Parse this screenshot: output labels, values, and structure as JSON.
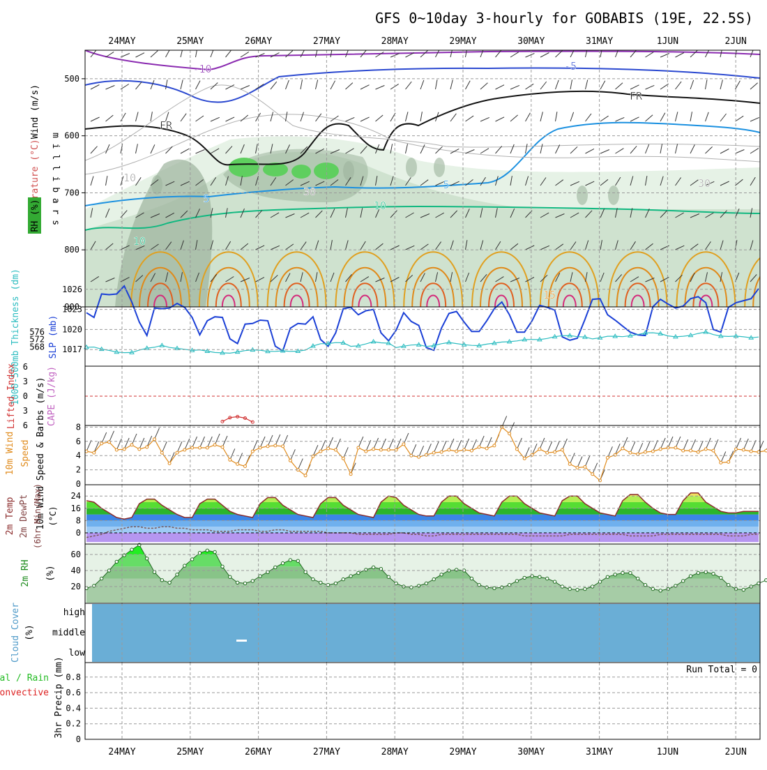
{
  "title": "GFS 0~10day 3-hourly for GOBABIS (19E, 22.5S)",
  "dates": [
    "24MAY",
    "25MAY",
    "26MAY",
    "27MAY",
    "28MAY",
    "29MAY",
    "30MAY",
    "31MAY",
    "1JUN",
    "2JUN"
  ],
  "colors": {
    "frame": "#000000",
    "grid": "#9a9a9a",
    "rh_light": "#e6f2e6",
    "rh_mid": "#c4dcc4",
    "rh_dark": "#9cb49c",
    "rh_green": "#5fcf5f",
    "wind_barb": "#333333",
    "slp": "#1a3fd6",
    "thickness": "#2bbcc0",
    "lifted": "#d03030",
    "cape": "#c060c0",
    "wind10": "#e08a1a",
    "temp_line": "#8b2a2a",
    "dewpt": "#7a5a5a",
    "rh2m": "#1a8a1a",
    "cloud_fill": "#6aaed6",
    "rain_green": "#22bb22",
    "conv_red": "#dd2222"
  },
  "upper_air": {
    "ylabel_chars": "m i l l i b a r s",
    "y_axis_label": "(millibars)",
    "side_labels": {
      "wind": "Wind (m/s)",
      "temp": "Temperature (°C)",
      "rh": "RH (%)"
    },
    "pressure_ticks": [
      500,
      600,
      700,
      800,
      900
    ],
    "contour_labels": [
      {
        "text": "-10",
        "kind": "temp"
      },
      {
        "text": "-5",
        "kind": "temp"
      },
      {
        "text": "FR",
        "kind": "freeze"
      },
      {
        "text": "FR",
        "kind": "freeze"
      },
      {
        "text": "5",
        "kind": "temp"
      },
      {
        "text": "5",
        "kind": "temp"
      },
      {
        "text": "10",
        "kind": "temp"
      },
      {
        "text": "10",
        "kind": "temp"
      },
      {
        "text": "15",
        "kind": "temp"
      },
      {
        "text": "10",
        "kind": "rh"
      },
      {
        "text": "30",
        "kind": "rh"
      },
      {
        "text": "30",
        "kind": "rh"
      }
    ]
  },
  "chart_data": [
    {
      "type": "line",
      "name": "SLP and 1000-500mb Thickness",
      "ylabel_left": "1000-500mb Thickness (dm)",
      "ylabel_right": "SLP (mb)",
      "left_ticks": [
        576,
        572,
        568
      ],
      "right_ticks": [
        1026,
        1023,
        1020,
        1017
      ],
      "series": [
        {
          "name": "SLP (mb)",
          "values": [
            1022.5,
            1021.8,
            1025.3,
            1025.2,
            1025.3,
            1026.5,
            1024.1,
            1021.1,
            1019.1,
            1023.2,
            1023.1,
            1023.2,
            1023.9,
            1023.3,
            1021.8,
            1019.2,
            1021.3,
            1021.9,
            1021.8,
            1018.6,
            1017.9,
            1020.8,
            1020.9,
            1021.4,
            1021.3,
            1017.5,
            1016.8,
            1020.2,
            1020.9,
            1020.8,
            1021.9,
            1018.5,
            1017.5,
            1019.5,
            1023.1,
            1023.3,
            1022.2,
            1022.8,
            1023.0,
            1019.5,
            1018.3,
            1019.9,
            1022.5,
            1021.2,
            1020.6,
            1017.3,
            1016.9,
            1020.2,
            1022.4,
            1022.7,
            1021.1,
            1019.7,
            1019.7,
            1021.3,
            1023.1,
            1024.1,
            1022.2,
            1019.6,
            1019.6,
            1021.3,
            1023.6,
            1023.3,
            1022.9,
            1018.9,
            1018.4,
            1018.7,
            1021.5,
            1024.5,
            1024.6,
            1022.2,
            1021.4,
            1020.5,
            1019.6,
            1019.2,
            1019.1,
            1023.4,
            1024.5,
            1023.8,
            1023.2,
            1023.5,
            1024.6,
            1024.9,
            1024.0,
            1020.0,
            1019.6,
            1023.3,
            1024.0,
            1024.3,
            1024.6,
            1026.1
          ]
        },
        {
          "name": "1000-500mb Thickness (dm)",
          "values": [
            567.8,
            567.9,
            566.8,
            566.1,
            565.2,
            564.9,
            565.0,
            566.3,
            567.3,
            567.8,
            568.8,
            567.7,
            567.2,
            566.7,
            566.1,
            566.4,
            565.7,
            565.0,
            564.8,
            564.6,
            565.3,
            566.0,
            566.4,
            566.2,
            565.6,
            565.6,
            565.9,
            565.6,
            565.7,
            566.3,
            568.5,
            569.7,
            569.8,
            570.3,
            570.2,
            568.3,
            568.6,
            569.6,
            570.8,
            570.2,
            570.0,
            567.6,
            568.4,
            569.0,
            569.2,
            568.2,
            568.7,
            569.7,
            570.4,
            569.8,
            569.2,
            568.8,
            568.7,
            569.5,
            570.0,
            570.6,
            570.8,
            571.2,
            571.9,
            572.0,
            571.9,
            572.5,
            573.5,
            574.0,
            574.1,
            573.5,
            573.3,
            572.3,
            572.9,
            573.7,
            573.7,
            573.5,
            574.0,
            574.6,
            575.5,
            575.6,
            575.1,
            573.9,
            573.4,
            573.7,
            574.2,
            575.2,
            576.0,
            574.6,
            573.8,
            573.6,
            573.8,
            573.4,
            572.9,
            573.3
          ]
        }
      ]
    },
    {
      "type": "line",
      "name": "Lifted Index and CAPE",
      "ylabel_left": "Lifted Index",
      "ylabel_right": "CAPE (J/kg)",
      "ticks": [
        -6,
        -3,
        0,
        3,
        6
      ],
      "tick_labels": [
        "6",
        "3",
        "0",
        "3",
        "6"
      ],
      "series": [
        {
          "name": "Lifted Index",
          "x": [
            18,
            19,
            20,
            21,
            22
          ],
          "values": [
            5.2,
            4.4,
            4.2,
            4.5,
            5.3
          ]
        }
      ]
    },
    {
      "type": "line",
      "name": "10m Wind Speed & Barbs",
      "ylabel": "10m Wind Speed & Barbs (m/s)",
      "ylim": [
        0,
        8
      ],
      "ticks": [
        0,
        2,
        4,
        6,
        8
      ],
      "series": [
        {
          "name": "Wind speed (m/s)",
          "values": [
            4.6,
            4.4,
            5.7,
            5.9,
            4.8,
            4.9,
            5.5,
            4.9,
            5.2,
            6.3,
            4.4,
            2.9,
            4.4,
            4.8,
            5.1,
            5.1,
            5.1,
            5.5,
            5.2,
            3.4,
            2.8,
            2.5,
            4.6,
            5.1,
            5.3,
            5.4,
            5.3,
            3.3,
            2.0,
            1.2,
            3.9,
            4.6,
            5.0,
            4.8,
            3.6,
            1.4,
            5.1,
            4.6,
            4.9,
            4.8,
            4.8,
            4.8,
            5.6,
            4.0,
            3.8,
            4.1,
            4.4,
            4.5,
            4.8,
            4.6,
            4.8,
            4.7,
            5.2,
            5.0,
            5.4,
            8.0,
            7.1,
            4.9,
            3.6,
            4.1,
            4.9,
            4.4,
            4.5,
            4.8,
            2.8,
            2.3,
            2.4,
            1.4,
            0.5,
            3.7,
            4.1,
            5.0,
            4.4,
            4.2,
            4.5,
            4.6,
            4.9,
            5.1,
            5.1,
            4.7,
            4.7,
            4.5,
            4.9,
            4.7,
            3.0,
            3.1,
            4.9,
            4.8,
            4.6,
            4.5,
            4.7
          ]
        }
      ]
    },
    {
      "type": "area",
      "name": "2m Temp / 2m DewPt (6hr Min/Max)",
      "ylabel": "2m Temp 2m DewPt (6hr Min/Max) (°C)",
      "ticks": [
        0,
        8,
        16,
        24
      ],
      "series": [
        {
          "name": "2m Temp (°C)",
          "values": [
            21,
            20,
            16,
            13,
            10,
            9,
            10,
            19,
            22,
            22,
            18,
            15,
            12,
            10,
            10,
            19,
            22,
            22,
            18,
            14,
            12,
            11,
            10,
            19,
            23,
            23,
            18,
            15,
            12,
            11,
            10,
            19,
            23,
            23,
            18,
            15,
            12,
            11,
            10,
            20,
            24,
            23,
            18,
            15,
            12,
            11,
            11,
            20,
            24,
            24,
            19,
            16,
            13,
            12,
            11,
            20,
            24,
            24,
            19,
            16,
            13,
            12,
            11,
            21,
            24,
            24,
            19,
            16,
            13,
            12,
            11,
            21,
            25,
            25,
            20,
            16,
            13,
            12,
            12,
            21,
            26,
            26,
            20,
            17,
            14,
            13,
            13,
            14,
            14,
            14
          ]
        },
        {
          "name": "2m DewPt (°C)",
          "values": [
            -3,
            -2,
            -1,
            1,
            2,
            3,
            4,
            4,
            3,
            3,
            4,
            4,
            3,
            3,
            2,
            2,
            2,
            1,
            1,
            1,
            2,
            2,
            2,
            1,
            1,
            2,
            2,
            1,
            1,
            1,
            1,
            1,
            0,
            0,
            0,
            0,
            -1,
            -1,
            -1,
            -1,
            -1,
            0,
            0,
            -1,
            -1,
            -2,
            -2,
            -1,
            -1,
            -1,
            -1,
            -1,
            -1,
            -1,
            -1,
            -1,
            -1,
            -1,
            -2,
            -2,
            -2,
            -2,
            -2,
            -2,
            -1,
            -1,
            -1,
            -1,
            -1,
            -1,
            -1,
            -1,
            -2,
            -2,
            -2,
            -2,
            -1,
            -1,
            -1,
            -1,
            -1,
            -1,
            -1,
            -1,
            -1,
            -2,
            -2,
            -2,
            -1,
            -1
          ]
        }
      ]
    },
    {
      "type": "area",
      "name": "2m RH",
      "ylabel": "2m RH (%)",
      "ticks": [
        20,
        40,
        60
      ],
      "series": [
        {
          "name": "2m RH (%)",
          "values": [
            18,
            21,
            30,
            40,
            51,
            59,
            66,
            72,
            55,
            38,
            28,
            25,
            35,
            46,
            54,
            62,
            65,
            63,
            45,
            32,
            25,
            24,
            27,
            33,
            38,
            44,
            49,
            53,
            52,
            38,
            29,
            25,
            22,
            24,
            29,
            33,
            37,
            41,
            44,
            42,
            32,
            24,
            20,
            19,
            21,
            24,
            29,
            35,
            40,
            41,
            40,
            30,
            22,
            19,
            18,
            19,
            22,
            27,
            31,
            33,
            32,
            30,
            26,
            20,
            17,
            16,
            17,
            20,
            26,
            32,
            35,
            37,
            37,
            30,
            22,
            17,
            15,
            17,
            21,
            27,
            33,
            37,
            38,
            36,
            31,
            22,
            17,
            16,
            20,
            24,
            28,
            31,
            33,
            34,
            35
          ]
        }
      ]
    },
    {
      "type": "area",
      "name": "Cloud Cover",
      "ylabel": "Cloud Cover (%)",
      "levels": [
        "high",
        "middle",
        "low"
      ]
    },
    {
      "type": "bar",
      "name": "3hr Precip",
      "ylabel": "3hr Precip (mm)",
      "side_labels": [
        "Total / Rain",
        "Convective"
      ],
      "ylim": [
        0,
        1
      ],
      "ticks": [
        0,
        0.2,
        0.4,
        0.6,
        0.8
      ],
      "tick_labels": [
        "0",
        "0.2",
        "0.4",
        "0.6",
        "0.8"
      ],
      "run_total_label": "Run Total = 0",
      "values": []
    }
  ]
}
